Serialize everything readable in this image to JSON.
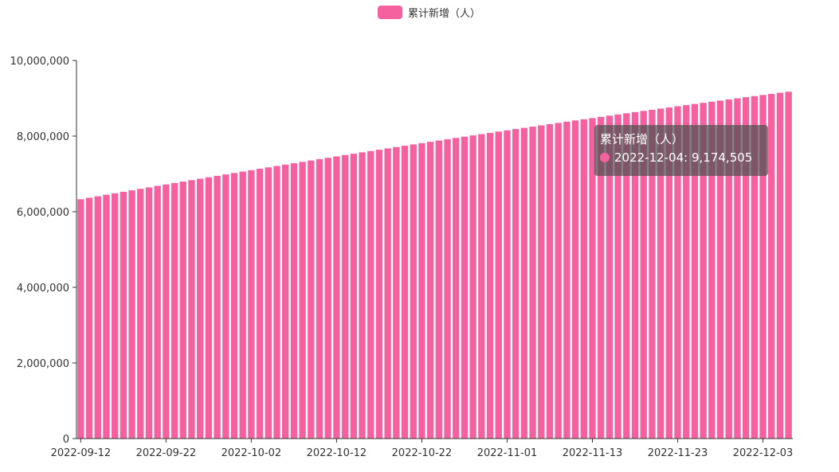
{
  "colors": {
    "bar": "#f5609e",
    "axis": "#333333",
    "tooltip_bg": "rgba(80,80,80,0.72)"
  },
  "chart_data": {
    "type": "bar",
    "legend": {
      "label": "累计新增（人）",
      "placement": "top-center"
    },
    "series": [
      {
        "name": "累计新增（人）",
        "start_value": 6330000,
        "end_value": 9174505,
        "bar_count": 84
      }
    ],
    "y_axis": {
      "min": 0,
      "max": 10000000,
      "ticks": [
        "0",
        "2,000,000",
        "4,000,000",
        "6,000,000",
        "8,000,000",
        "10,000,000"
      ],
      "tick_values": [
        0,
        2000000,
        4000000,
        6000000,
        8000000,
        10000000
      ]
    },
    "x_axis": {
      "ticks": [
        "2022-09-12",
        "2022-09-22",
        "2022-10-02",
        "2022-10-12",
        "2022-10-22",
        "2022-11-01",
        "2022-11-13",
        "2022-11-23",
        "2022-12-03"
      ],
      "tick_indices": [
        0,
        10,
        20,
        30,
        40,
        50,
        60,
        70,
        80
      ]
    },
    "grid": false
  },
  "tooltip": {
    "title": "累计新增（人）",
    "value_text": "2022-12-04: 9,174,505"
  }
}
